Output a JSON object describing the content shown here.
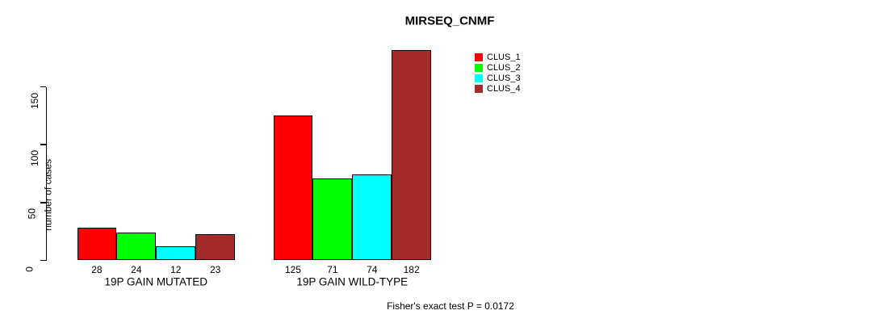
{
  "chart_data": {
    "type": "bar",
    "title": "MIRSEQ_CNMF",
    "ylabel": "number of cases",
    "xlabel": "",
    "categories": [
      "19P GAIN MUTATED",
      "19P GAIN WILD-TYPE"
    ],
    "series": [
      {
        "name": "CLUS_1",
        "color": "#FF0000",
        "values": [
          28,
          125
        ]
      },
      {
        "name": "CLUS_2",
        "color": "#00FF00",
        "values": [
          24,
          71
        ]
      },
      {
        "name": "CLUS_3",
        "color": "#00FFFF",
        "values": [
          12,
          74
        ]
      },
      {
        "name": "CLUS_4",
        "color": "#A52A2A",
        "values": [
          23,
          182
        ]
      }
    ],
    "bar_value_labels": [
      [
        "28",
        "24",
        "12",
        "23"
      ],
      [
        "125",
        "71",
        "74",
        "182"
      ]
    ],
    "yticks": [
      0,
      50,
      100,
      150
    ],
    "ylim": [
      0,
      150
    ],
    "grid": false,
    "legend": {
      "position": "top-right",
      "entries": [
        "CLUS_1",
        "CLUS_2",
        "CLUS_3",
        "CLUS_4"
      ]
    },
    "annotation": "Fisher's exact test P = 0.0172"
  }
}
